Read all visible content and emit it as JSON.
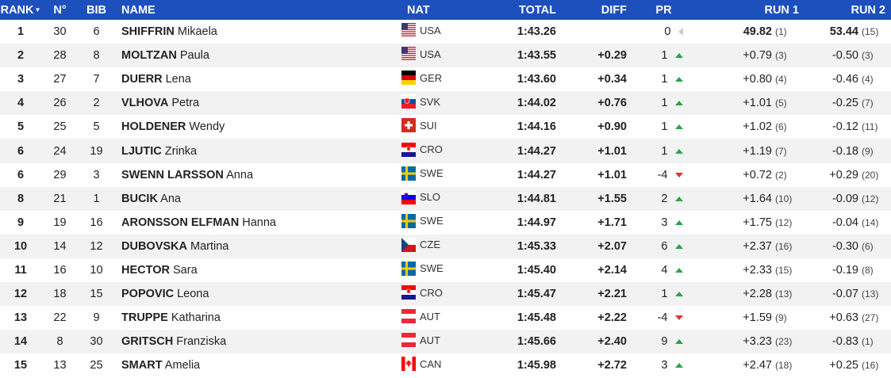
{
  "header": {
    "rank": "RANK",
    "rank_sort_icon": "sort-down-icon",
    "no": "N°",
    "bib": "BIB",
    "name": "NAME",
    "nat": "NAT",
    "total": "TOTAL",
    "diff": "DIFF",
    "pr": "PR",
    "run1": "RUN 1",
    "run2": "RUN 2"
  },
  "colors": {
    "header_bg": "#1d4fbd",
    "arrow_up": "#2aa44b",
    "arrow_down": "#e5322d",
    "arrow_neutral": "#c9c9c9"
  },
  "rows": [
    {
      "rank": "1",
      "no": "30",
      "bib": "6",
      "surname": "SHIFFRIN",
      "firstname": "Mikaela",
      "nat": "USA",
      "flag": "usa-flag-icon",
      "total": "1:43.26",
      "diff": "",
      "pr": "0",
      "pr_trend": "neutral",
      "run1": "49.82",
      "run1_rank": "(1)",
      "run1_best": true,
      "run2": "53.44",
      "run2_rank": "(15)",
      "run2_best": true
    },
    {
      "rank": "2",
      "no": "28",
      "bib": "8",
      "surname": "MOLTZAN",
      "firstname": "Paula",
      "nat": "USA",
      "flag": "usa-flag-icon",
      "total": "1:43.55",
      "diff": "+0.29",
      "pr": "1",
      "pr_trend": "up",
      "run1": "+0.79",
      "run1_rank": "(3)",
      "run2": "-0.50",
      "run2_rank": "(3)"
    },
    {
      "rank": "3",
      "no": "27",
      "bib": "7",
      "surname": "DUERR",
      "firstname": "Lena",
      "nat": "GER",
      "flag": "ger-flag-icon",
      "total": "1:43.60",
      "diff": "+0.34",
      "pr": "1",
      "pr_trend": "up",
      "run1": "+0.80",
      "run1_rank": "(4)",
      "run2": "-0.46",
      "run2_rank": "(4)"
    },
    {
      "rank": "4",
      "no": "26",
      "bib": "2",
      "surname": "VLHOVA",
      "firstname": "Petra",
      "nat": "SVK",
      "flag": "svk-flag-icon",
      "total": "1:44.02",
      "diff": "+0.76",
      "pr": "1",
      "pr_trend": "up",
      "run1": "+1.01",
      "run1_rank": "(5)",
      "run2": "-0.25",
      "run2_rank": "(7)"
    },
    {
      "rank": "5",
      "no": "25",
      "bib": "5",
      "surname": "HOLDENER",
      "firstname": "Wendy",
      "nat": "SUI",
      "flag": "sui-flag-icon",
      "total": "1:44.16",
      "diff": "+0.90",
      "pr": "1",
      "pr_trend": "up",
      "run1": "+1.02",
      "run1_rank": "(6)",
      "run2": "-0.12",
      "run2_rank": "(11)"
    },
    {
      "rank": "6",
      "no": "24",
      "bib": "19",
      "surname": "LJUTIC",
      "firstname": "Zrinka",
      "nat": "CRO",
      "flag": "cro-flag-icon",
      "total": "1:44.27",
      "diff": "+1.01",
      "pr": "1",
      "pr_trend": "up",
      "run1": "+1.19",
      "run1_rank": "(7)",
      "run2": "-0.18",
      "run2_rank": "(9)"
    },
    {
      "rank": "6",
      "no": "29",
      "bib": "3",
      "surname": "SWENN LARSSON",
      "firstname": "Anna",
      "nat": "SWE",
      "flag": "swe-flag-icon",
      "total": "1:44.27",
      "diff": "+1.01",
      "pr": "-4",
      "pr_trend": "down",
      "run1": "+0.72",
      "run1_rank": "(2)",
      "run2": "+0.29",
      "run2_rank": "(20)"
    },
    {
      "rank": "8",
      "no": "21",
      "bib": "1",
      "surname": "BUCIK",
      "firstname": "Ana",
      "nat": "SLO",
      "flag": "slo-flag-icon",
      "total": "1:44.81",
      "diff": "+1.55",
      "pr": "2",
      "pr_trend": "up",
      "run1": "+1.64",
      "run1_rank": "(10)",
      "run2": "-0.09",
      "run2_rank": "(12)"
    },
    {
      "rank": "9",
      "no": "19",
      "bib": "16",
      "surname": "ARONSSON ELFMAN",
      "firstname": "Hanna",
      "nat": "SWE",
      "flag": "swe-flag-icon",
      "total": "1:44.97",
      "diff": "+1.71",
      "pr": "3",
      "pr_trend": "up",
      "run1": "+1.75",
      "run1_rank": "(12)",
      "run2": "-0.04",
      "run2_rank": "(14)"
    },
    {
      "rank": "10",
      "no": "14",
      "bib": "12",
      "surname": "DUBOVSKA",
      "firstname": "Martina",
      "nat": "CZE",
      "flag": "cze-flag-icon",
      "total": "1:45.33",
      "diff": "+2.07",
      "pr": "6",
      "pr_trend": "up",
      "run1": "+2.37",
      "run1_rank": "(16)",
      "run2": "-0.30",
      "run2_rank": "(6)"
    },
    {
      "rank": "11",
      "no": "16",
      "bib": "10",
      "surname": "HECTOR",
      "firstname": "Sara",
      "nat": "SWE",
      "flag": "swe-flag-icon",
      "total": "1:45.40",
      "diff": "+2.14",
      "pr": "4",
      "pr_trend": "up",
      "run1": "+2.33",
      "run1_rank": "(15)",
      "run2": "-0.19",
      "run2_rank": "(8)"
    },
    {
      "rank": "12",
      "no": "18",
      "bib": "15",
      "surname": "POPOVIC",
      "firstname": "Leona",
      "nat": "CRO",
      "flag": "cro-flag-icon",
      "total": "1:45.47",
      "diff": "+2.21",
      "pr": "1",
      "pr_trend": "up",
      "run1": "+2.28",
      "run1_rank": "(13)",
      "run2": "-0.07",
      "run2_rank": "(13)"
    },
    {
      "rank": "13",
      "no": "22",
      "bib": "9",
      "surname": "TRUPPE",
      "firstname": "Katharina",
      "nat": "AUT",
      "flag": "aut-flag-icon",
      "total": "1:45.48",
      "diff": "+2.22",
      "pr": "-4",
      "pr_trend": "down",
      "run1": "+1.59",
      "run1_rank": "(9)",
      "run2": "+0.63",
      "run2_rank": "(27)"
    },
    {
      "rank": "14",
      "no": "8",
      "bib": "30",
      "surname": "GRITSCH",
      "firstname": "Franziska",
      "nat": "AUT",
      "flag": "aut-flag-icon",
      "total": "1:45.66",
      "diff": "+2.40",
      "pr": "9",
      "pr_trend": "up",
      "run1": "+3.23",
      "run1_rank": "(23)",
      "run2": "-0.83",
      "run2_rank": "(1)"
    },
    {
      "rank": "15",
      "no": "13",
      "bib": "25",
      "surname": "SMART",
      "firstname": "Amelia",
      "nat": "CAN",
      "flag": "can-flag-icon",
      "total": "1:45.98",
      "diff": "+2.72",
      "pr": "3",
      "pr_trend": "up",
      "run1": "+2.47",
      "run1_rank": "(18)",
      "run2": "+0.25",
      "run2_rank": "(16)"
    }
  ]
}
